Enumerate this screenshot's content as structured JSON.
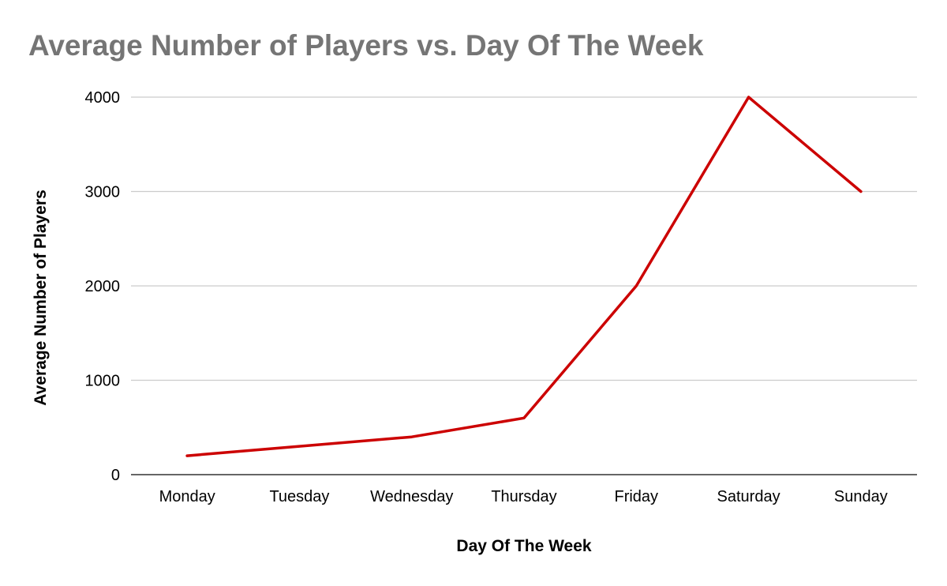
{
  "chart_data": {
    "type": "line",
    "title": "Average Number of Players vs. Day Of The Week",
    "xlabel": "Day Of The Week",
    "ylabel": "Average Number of Players",
    "categories": [
      "Monday",
      "Tuesday",
      "Wednesday",
      "Thursday",
      "Friday",
      "Saturday",
      "Sunday"
    ],
    "series": [
      {
        "values": [
          200,
          300,
          400,
          600,
          2000,
          4000,
          3000
        ],
        "color": "#cc0000"
      }
    ],
    "ylim": [
      0,
      4000
    ],
    "yticks": [
      "0",
      "1000",
      "2000",
      "3000",
      "4000"
    ],
    "grid": true,
    "legend": "none",
    "colors": {
      "title": "#757575",
      "grid": "#cccccc",
      "axis": "#333333",
      "text": "#000000"
    }
  }
}
